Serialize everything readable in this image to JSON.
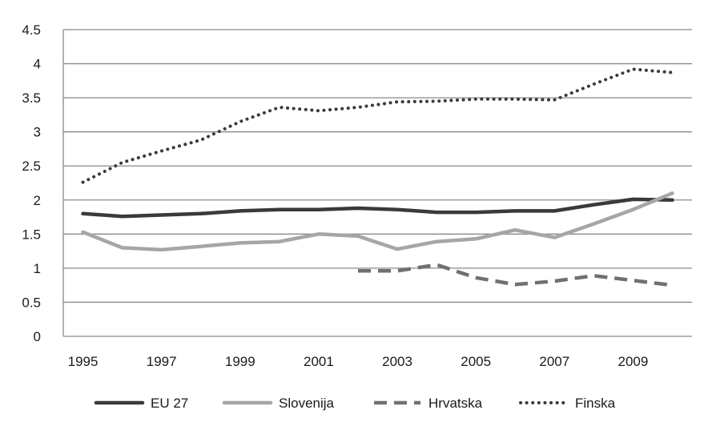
{
  "chart_data": {
    "type": "line",
    "title": "",
    "xlabel": "",
    "ylabel": "",
    "x": [
      1995,
      1996,
      1997,
      1998,
      1999,
      2000,
      2001,
      2002,
      2003,
      2004,
      2005,
      2006,
      2007,
      2008,
      2009,
      2010
    ],
    "x_tick_labels": [
      "1995",
      "1997",
      "1999",
      "2001",
      "2003",
      "2005",
      "2007",
      "2009"
    ],
    "y_tick_labels": [
      "0",
      "0.5",
      "1",
      "1.5",
      "2",
      "2.5",
      "3",
      "3.5",
      "4",
      "4.5"
    ],
    "ylim": [
      0,
      4.5
    ],
    "grid": true,
    "legend_position": "bottom",
    "series": [
      {
        "name": "EU 27",
        "color": "#3a3a3a",
        "dash": "solid",
        "values": [
          1.8,
          1.76,
          1.78,
          1.8,
          1.84,
          1.86,
          1.86,
          1.88,
          1.86,
          1.82,
          1.82,
          1.84,
          1.84,
          1.93,
          2.01,
          2.0
        ]
      },
      {
        "name": "Slovenija",
        "color": "#a6a6a6",
        "dash": "solid",
        "values": [
          1.53,
          1.3,
          1.27,
          1.32,
          1.37,
          1.39,
          1.5,
          1.47,
          1.28,
          1.39,
          1.43,
          1.56,
          1.45,
          1.65,
          1.86,
          2.1
        ]
      },
      {
        "name": "Hrvatska",
        "color": "#707070",
        "dash": "dash",
        "values": [
          null,
          null,
          null,
          null,
          null,
          null,
          null,
          0.96,
          0.96,
          1.05,
          0.86,
          0.76,
          0.81,
          0.89,
          0.82,
          0.75
        ]
      },
      {
        "name": "Finska",
        "color": "#3a3a3a",
        "dash": "dot",
        "values": [
          2.26,
          2.55,
          2.72,
          2.88,
          3.15,
          3.36,
          3.31,
          3.36,
          3.44,
          3.45,
          3.48,
          3.48,
          3.47,
          3.7,
          3.92,
          3.87
        ]
      }
    ]
  }
}
